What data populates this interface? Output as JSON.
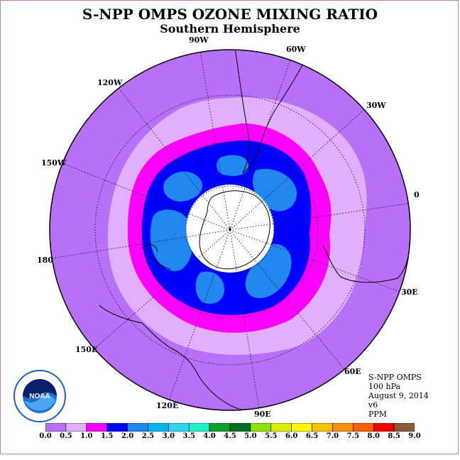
{
  "header": {
    "title": "S-NPP OMPS OZONE MIXING RATIO",
    "subtitle": "Southern Hemisphere"
  },
  "map": {
    "projection": "south-polar-stereographic",
    "longitude_labels": [
      "90W",
      "60W",
      "30W",
      "0",
      "30E",
      "60E",
      "90E",
      "120E",
      "150E",
      "180",
      "150W",
      "120W"
    ],
    "polar_mask_color": "#ffffff",
    "coastline_color": "#000000"
  },
  "info": {
    "instrument": "S-NPP OMPS",
    "level": "100 hPa",
    "date": "August 9, 2014",
    "version": "v6",
    "units": "PPM"
  },
  "colorbar": {
    "ticks": [
      "0.0",
      "0.5",
      "1.0",
      "1.5",
      "2.0",
      "2.5",
      "3.0",
      "3.5",
      "4.0",
      "4.5",
      "5.0",
      "5.5",
      "6.0",
      "6.5",
      "7.0",
      "7.5",
      "8.0",
      "8.5",
      "9.0"
    ],
    "colors": [
      "#b870f8",
      "#e0b0ff",
      "#ff00ff",
      "#0000ff",
      "#2088f0",
      "#00b4f0",
      "#30d4f0",
      "#20f0c8",
      "#10a030",
      "#007020",
      "#90e000",
      "#d8f000",
      "#f8f800",
      "#f8c000",
      "#f89000",
      "#f86000",
      "#f00000",
      "#8b5a3c"
    ]
  },
  "logo": {
    "text": "NOAA",
    "icon": "noaa-logo-icon"
  }
}
